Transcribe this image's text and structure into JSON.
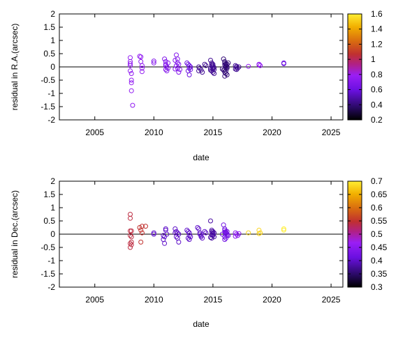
{
  "colors": {
    "axis": "#000000",
    "zero_line": "#000000"
  },
  "chart_data": [
    {
      "type": "scatter",
      "ylabel": "residual in R.A.(arcsec)",
      "xlabel": "date",
      "xlim": [
        2002,
        2026
      ],
      "ylim": [
        -2,
        2
      ],
      "xticks": [
        "2005",
        "2010",
        "2015",
        "2020",
        "2025"
      ],
      "yticks": [
        "2",
        "1.5",
        "1",
        "0.5",
        "0",
        "-0.5",
        "-1",
        "-1.5",
        "-2"
      ],
      "zero_line": true,
      "colorbar": {
        "ticks": [
          "1.6",
          "1.4",
          "1.2",
          "1",
          "0.8",
          "0.6",
          "0.4",
          "0.2"
        ],
        "range": [
          0.2,
          1.6
        ]
      },
      "series": [
        {
          "x": [
            2008.0,
            2008.0,
            2008.0,
            2008.0,
            2008.0,
            2008.1,
            2008.1,
            2008.1,
            2008.1,
            2008.2
          ],
          "y": [
            0.35,
            0.2,
            0.12,
            0.05,
            -0.15,
            -0.25,
            -0.5,
            -0.6,
            -0.9,
            -1.45
          ],
          "c": 0.75
        },
        {
          "x": [
            2008.8,
            2008.9,
            2008.9,
            2009.0,
            2009.0,
            2009.0
          ],
          "y": [
            0.4,
            0.38,
            0.2,
            0.05,
            -0.05,
            -0.18
          ],
          "c": 0.75
        },
        {
          "x": [
            2010.0,
            2010.0,
            2010.9,
            2011.0,
            2011.0,
            2011.1,
            2011.2,
            2011.2,
            2011.0,
            2011.1,
            2011.0
          ],
          "y": [
            0.22,
            0.15,
            0.3,
            0.2,
            0.05,
            0.0,
            0.15,
            -0.05,
            -0.1,
            -0.15,
            0.1
          ],
          "c": 0.7
        },
        {
          "x": [
            2011.8,
            2011.9,
            2012.0,
            2012.1,
            2011.9,
            2012.0,
            2012.2,
            2012.1,
            2012.0,
            2011.8
          ],
          "y": [
            0.25,
            0.45,
            0.3,
            0.1,
            0.05,
            -0.05,
            -0.1,
            -0.2,
            0.15,
            -0.08
          ],
          "c": 0.7
        },
        {
          "x": [
            2012.8,
            2012.9,
            2013.0,
            2013.0,
            2013.1,
            2012.9,
            2013.0,
            2013.1
          ],
          "y": [
            0.15,
            0.1,
            0.05,
            -0.05,
            -0.1,
            -0.15,
            -0.3,
            0.0
          ],
          "c": 0.6
        },
        {
          "x": [
            2013.8,
            2013.9,
            2014.0,
            2014.1,
            2013.8,
            2014.3,
            2014.4
          ],
          "y": [
            0.0,
            -0.05,
            -0.12,
            -0.2,
            -0.15,
            0.1,
            0.05
          ],
          "c": 0.45
        },
        {
          "x": [
            2014.8,
            2014.9,
            2014.9,
            2015.0,
            2015.0,
            2015.0,
            2015.1,
            2014.8,
            2014.9,
            2015.0,
            2015.1,
            2014.9,
            2015.0,
            2015.1,
            2014.8,
            2015.0
          ],
          "y": [
            0.25,
            0.15,
            0.1,
            0.05,
            0.0,
            -0.05,
            -0.1,
            -0.12,
            -0.15,
            -0.2,
            -0.25,
            0.05,
            0.1,
            -0.02,
            -0.05,
            -0.08
          ],
          "c": 0.45
        },
        {
          "x": [
            2015.9,
            2016.0,
            2016.0,
            2016.1,
            2016.1,
            2016.2,
            2016.2,
            2016.0,
            2016.1,
            2016.0,
            2016.1,
            2016.2,
            2016.0,
            2016.1,
            2015.8,
            2016.3,
            2016.0,
            2016.1,
            2016.2,
            2015.9,
            2016.1
          ],
          "y": [
            0.3,
            0.2,
            0.15,
            0.1,
            0.05,
            0.0,
            -0.05,
            -0.1,
            -0.15,
            -0.2,
            -0.25,
            -0.3,
            -0.35,
            0.12,
            -0.08,
            0.15,
            0.08,
            -0.02,
            0.1,
            -0.12,
            0.02
          ],
          "c": 0.4
        },
        {
          "x": [
            2016.9,
            2017.0,
            2017.0,
            2017.1,
            2017.2,
            2016.9,
            2017.0
          ],
          "y": [
            0.05,
            0.02,
            -0.02,
            -0.05,
            0.0,
            -0.08,
            -0.1
          ],
          "c": 0.45
        },
        {
          "x": [
            2018.0,
            2018.9,
            2019.0,
            2018.9
          ],
          "y": [
            0.02,
            0.1,
            0.05,
            0.08
          ],
          "c": 0.75
        },
        {
          "x": [
            2021.0,
            2021.0
          ],
          "y": [
            0.15,
            0.12
          ],
          "c": 0.6
        }
      ]
    },
    {
      "type": "scatter",
      "ylabel": "residual in Dec.(arcsec)",
      "xlabel": "date",
      "xlim": [
        2002,
        2026
      ],
      "ylim": [
        -2,
        2
      ],
      "xticks": [
        "2005",
        "2010",
        "2015",
        "2020",
        "2025"
      ],
      "yticks": [
        "2",
        "1.5",
        "1",
        "0.5",
        "0",
        "-0.5",
        "-1",
        "-1.5",
        "-2"
      ],
      "zero_line": true,
      "colorbar": {
        "ticks": [
          "0.7",
          "0.65",
          "0.6",
          "0.55",
          "0.5",
          "0.45",
          "0.4",
          "0.35",
          "0.3"
        ],
        "range": [
          0.3,
          0.7
        ]
      },
      "series": [
        {
          "x": [
            2008.0,
            2008.0,
            2008.0,
            2008.1,
            2008.0,
            2008.1,
            2008.1,
            2008.0,
            2008.1,
            2008.0
          ],
          "y": [
            0.75,
            0.6,
            0.12,
            0.12,
            -0.05,
            -0.1,
            -0.3,
            -0.35,
            -0.4,
            -0.5
          ],
          "c": 0.54
        },
        {
          "x": [
            2008.8,
            2008.9,
            2009.0,
            2009.0,
            2009.3,
            2008.9
          ],
          "y": [
            0.25,
            0.15,
            0.3,
            0.05,
            0.3,
            -0.3
          ],
          "c": 0.55
        },
        {
          "x": [
            2010.0,
            2010.0,
            2010.8,
            2010.9,
            2011.0,
            2011.0,
            2010.8,
            2010.9,
            2011.1
          ],
          "y": [
            0.05,
            0.0,
            -0.05,
            -0.1,
            0.2,
            0.15,
            -0.2,
            -0.35,
            0.0
          ],
          "c": 0.4
        },
        {
          "x": [
            2011.8,
            2011.9,
            2012.0,
            2012.1,
            2011.9,
            2012.0,
            2012.1,
            2011.8
          ],
          "y": [
            0.2,
            0.1,
            0.05,
            0.0,
            -0.1,
            -0.15,
            -0.3,
            0.05
          ],
          "c": 0.4
        },
        {
          "x": [
            2012.8,
            2012.9,
            2013.0,
            2013.0,
            2013.1,
            2012.9,
            2013.0
          ],
          "y": [
            0.15,
            0.1,
            0.05,
            -0.05,
            -0.1,
            -0.15,
            -0.2
          ],
          "c": 0.4
        },
        {
          "x": [
            2013.7,
            2013.8,
            2013.9,
            2014.0,
            2014.0,
            2014.1,
            2014.3,
            2014.4,
            2013.9
          ],
          "y": [
            0.25,
            0.2,
            0.05,
            -0.05,
            -0.1,
            -0.15,
            0.1,
            0.05,
            0.0
          ],
          "c": 0.4
        },
        {
          "x": [
            2014.8,
            2014.9,
            2014.9,
            2015.0,
            2015.0,
            2015.0,
            2015.1,
            2014.8,
            2014.9,
            2015.0,
            2015.1,
            2015.0,
            2014.9
          ],
          "y": [
            0.5,
            0.15,
            0.1,
            0.05,
            0.0,
            -0.05,
            -0.1,
            -0.12,
            -0.15,
            -0.05,
            0.05,
            0.1,
            -0.03
          ],
          "c": 0.38
        },
        {
          "x": [
            2015.9,
            2016.0,
            2016.0,
            2016.1,
            2016.1,
            2016.2,
            2016.2,
            2016.0,
            2016.1,
            2016.0,
            2015.8,
            2016.2,
            2016.1,
            2016.0,
            2016.3
          ],
          "y": [
            0.35,
            0.2,
            0.15,
            0.1,
            0.05,
            0.0,
            -0.05,
            -0.1,
            -0.15,
            -0.2,
            0.0,
            0.1,
            0.02,
            0.08,
            -0.05
          ],
          "c": 0.42
        },
        {
          "x": [
            2016.9,
            2017.0,
            2017.1,
            2017.2,
            2016.9
          ],
          "y": [
            0.05,
            0.0,
            -0.05,
            0.02,
            -0.08
          ],
          "c": 0.45
        },
        {
          "x": [
            2018.0,
            2018.9,
            2019.0,
            2018.9
          ],
          "y": [
            0.05,
            0.15,
            0.05,
            0.02
          ],
          "c": 0.68
        },
        {
          "x": [
            2021.0,
            2021.0
          ],
          "y": [
            0.2,
            0.15
          ],
          "c": 0.7
        }
      ]
    }
  ]
}
